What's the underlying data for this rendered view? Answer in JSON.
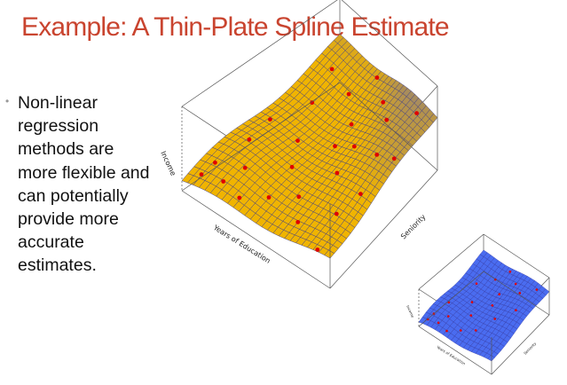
{
  "slide": {
    "title": "Example: A Thin-Plate Spline Estimate",
    "bullet": "Non-linear regression methods are more flexible and can potentially provide more accurate estimates."
  },
  "main_plot": {
    "z_label": "Income",
    "x_label": "Years of Education",
    "y_label": "Seniority",
    "surface_color": "#f0b400",
    "surface_high_color": "#4455dd",
    "mesh_color": "#3a3a8a",
    "point_color": "#e00000"
  },
  "inset_plot": {
    "z_label": "Income",
    "x_label": "Years of Education",
    "y_label": "Seniority",
    "surface_color": "#4a6cf0",
    "mesh_color": "#2a2a90",
    "point_color": "#e00000"
  }
}
